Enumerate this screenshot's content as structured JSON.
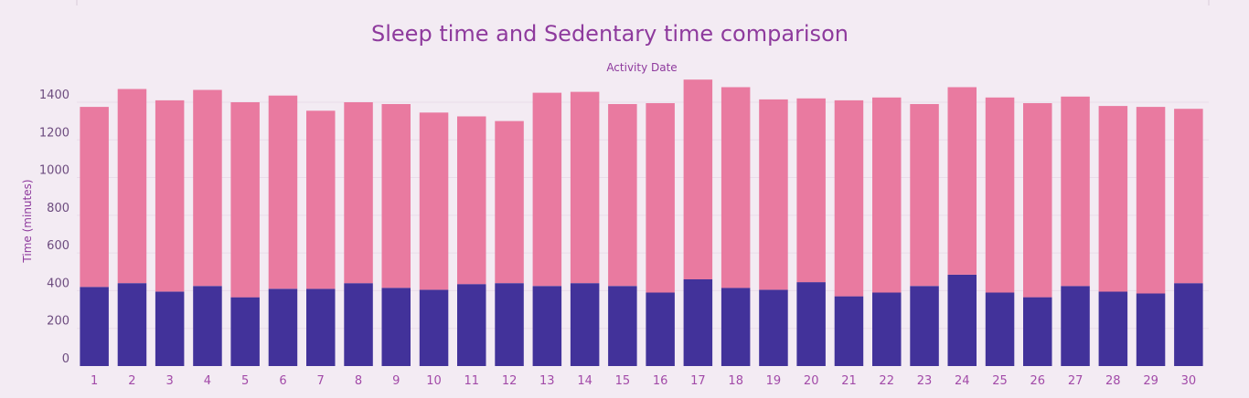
{
  "chart_data": {
    "type": "bar",
    "stacked": true,
    "title": "Sleep time and Sedentary time comparison",
    "xlabel": "Activity Date",
    "ylabel": "Time (minutes)",
    "ylim": [
      0,
      1550
    ],
    "yticks": [
      0,
      200,
      400,
      600,
      800,
      1000,
      1200,
      1400
    ],
    "grid": true,
    "categories": [
      "1",
      "2",
      "3",
      "4",
      "5",
      "6",
      "7",
      "8",
      "9",
      "10",
      "11",
      "12",
      "13",
      "14",
      "15",
      "16",
      "17",
      "18",
      "19",
      "20",
      "21",
      "22",
      "23",
      "24",
      "25",
      "26",
      "27",
      "28",
      "29",
      "30"
    ],
    "series": [
      {
        "color": "#42329a",
        "values": [
          420,
          440,
          395,
          425,
          365,
          410,
          410,
          440,
          415,
          405,
          435,
          440,
          425,
          440,
          425,
          390,
          460,
          415,
          405,
          445,
          370,
          390,
          425,
          485,
          390,
          365,
          425,
          395,
          385,
          440
        ]
      },
      {
        "color": "#e97aa0",
        "values": [
          955,
          1030,
          1015,
          1040,
          1035,
          1025,
          945,
          960,
          975,
          940,
          890,
          860,
          1025,
          1015,
          965,
          1005,
          1060,
          1065,
          1010,
          975,
          1040,
          1035,
          965,
          995,
          1035,
          1030,
          1005,
          985,
          990,
          925
        ]
      }
    ]
  }
}
